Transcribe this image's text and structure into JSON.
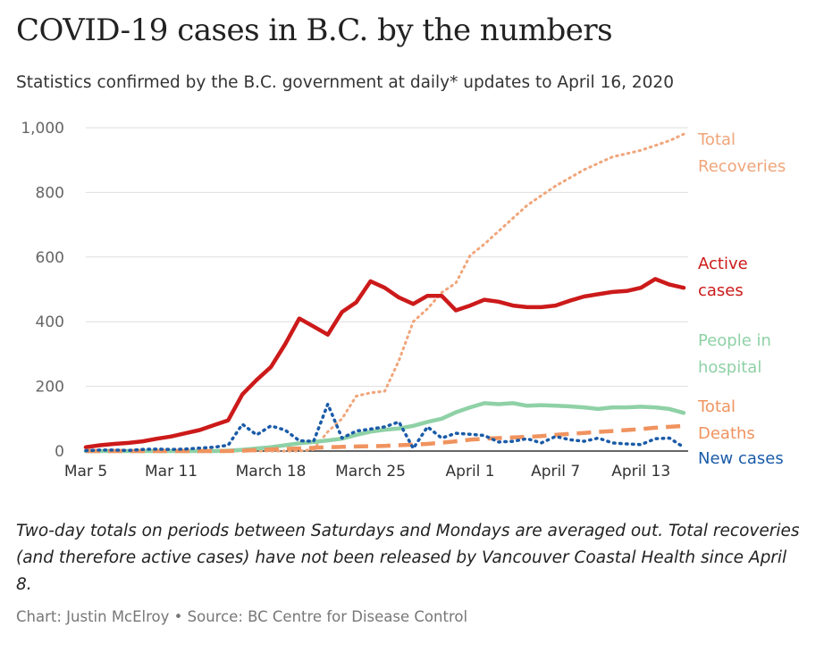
{
  "title": "COVID-19 cases in B.C. by the numbers",
  "subtitle": "Statistics confirmed by the B.C. government at daily* updates to April 16, 2020",
  "note": "Two-day totals on periods between Saturdays and Mondays are averaged out. Total recoveries (and therefore active cases) have not been released by Vancouver Coastal Health since April 8.",
  "credit": "Chart: Justin McElroy • Source: BC Centre for Disease Control",
  "chart_data": {
    "type": "line",
    "title": "COVID-19 cases in B.C. by the numbers",
    "subtitle": "Statistics confirmed by the B.C. government at daily* updates to April 16, 2020",
    "xlabel": "",
    "ylabel": "",
    "ylim": [
      0,
      1000
    ],
    "grid": true,
    "legend": "labels at right end of lines",
    "yticks": [
      0,
      200,
      400,
      600,
      800,
      1000
    ],
    "ytick_labels": [
      "0",
      "200",
      "400",
      "600",
      "800",
      "1,000"
    ],
    "xticks": [
      {
        "index": 0,
        "label": "Mar 5"
      },
      {
        "index": 6,
        "label": "Mar 11"
      },
      {
        "index": 13,
        "label": "March 18"
      },
      {
        "index": 20,
        "label": "March 25"
      },
      {
        "index": 27,
        "label": "April 1"
      },
      {
        "index": 33,
        "label": "April 7"
      },
      {
        "index": 39,
        "label": "April 13"
      }
    ],
    "x": [
      "Mar 5",
      "Mar 6",
      "Mar 7",
      "Mar 8",
      "Mar 9",
      "Mar 10",
      "Mar 11",
      "Mar 12",
      "Mar 13",
      "Mar 14",
      "Mar 15",
      "Mar 16",
      "Mar 17",
      "Mar 18",
      "Mar 19",
      "Mar 20",
      "Mar 21",
      "Mar 22",
      "Mar 23",
      "Mar 24",
      "Mar 25",
      "Mar 26",
      "Mar 27",
      "Mar 28",
      "Mar 29",
      "Mar 30",
      "Mar 31",
      "Apr 1",
      "Apr 2",
      "Apr 3",
      "Apr 4",
      "Apr 5",
      "Apr 6",
      "Apr 7",
      "Apr 8",
      "Apr 9",
      "Apr 10",
      "Apr 11",
      "Apr 12",
      "Apr 13",
      "Apr 14",
      "Apr 15",
      "Apr 16"
    ],
    "series": [
      {
        "name": "Total Recoveries",
        "label_lines": [
          "Total",
          "Recoveries"
        ],
        "color": "#f0a57a",
        "style": "dotted",
        "values": [
          0,
          0,
          0,
          0,
          0,
          0,
          0,
          0,
          0,
          0,
          0,
          0,
          0,
          0,
          0,
          0,
          5,
          60,
          100,
          170,
          180,
          185,
          280,
          400,
          440,
          490,
          520,
          605,
          640,
          680,
          720,
          760,
          790,
          820,
          845,
          870,
          890,
          910,
          920,
          930,
          945,
          960,
          980
        ]
      },
      {
        "name": "Active cases",
        "label_lines": [
          "Active",
          "cases"
        ],
        "color": "#cc1a1a",
        "style": "solid",
        "values": [
          12,
          18,
          22,
          25,
          30,
          38,
          45,
          55,
          65,
          80,
          95,
          175,
          220,
          260,
          330,
          410,
          385,
          360,
          430,
          460,
          525,
          505,
          475,
          455,
          480,
          480,
          435,
          450,
          468,
          462,
          450,
          445,
          445,
          450,
          465,
          478,
          485,
          492,
          495,
          505,
          532,
          515,
          505
        ]
      },
      {
        "name": "People in hospital",
        "label_lines": [
          "People in",
          "hospital"
        ],
        "color": "#8fd1a6",
        "style": "solid",
        "values": [
          0,
          0,
          0,
          0,
          0,
          0,
          0,
          0,
          0,
          0,
          1,
          4,
          8,
          12,
          18,
          24,
          28,
          33,
          38,
          50,
          60,
          66,
          70,
          78,
          90,
          100,
          120,
          135,
          148,
          145,
          148,
          140,
          142,
          140,
          138,
          135,
          130,
          135,
          135,
          137,
          135,
          130,
          118
        ]
      },
      {
        "name": "Total Deaths",
        "label_lines": [
          "Total",
          "Deaths"
        ],
        "color": "#f0935f",
        "style": "dashed",
        "values": [
          0,
          0,
          0,
          0,
          0,
          0,
          0,
          0,
          0,
          0,
          0,
          1,
          3,
          5,
          7,
          8,
          10,
          12,
          13,
          14,
          15,
          16,
          18,
          20,
          22,
          26,
          30,
          35,
          38,
          40,
          42,
          44,
          46,
          50,
          53,
          56,
          59,
          62,
          65,
          68,
          72,
          75,
          78
        ]
      },
      {
        "name": "New cases",
        "label_lines": [
          "New cases"
        ],
        "color": "#1a5ba8",
        "style": "dotted",
        "values": [
          1,
          3,
          3,
          2,
          5,
          6,
          5,
          6,
          9,
          12,
          18,
          83,
          50,
          78,
          65,
          32,
          30,
          145,
          40,
          62,
          68,
          75,
          90,
          8,
          75,
          40,
          55,
          52,
          48,
          28,
          30,
          38,
          25,
          45,
          35,
          30,
          40,
          25,
          22,
          20,
          38,
          40,
          12
        ]
      }
    ]
  }
}
